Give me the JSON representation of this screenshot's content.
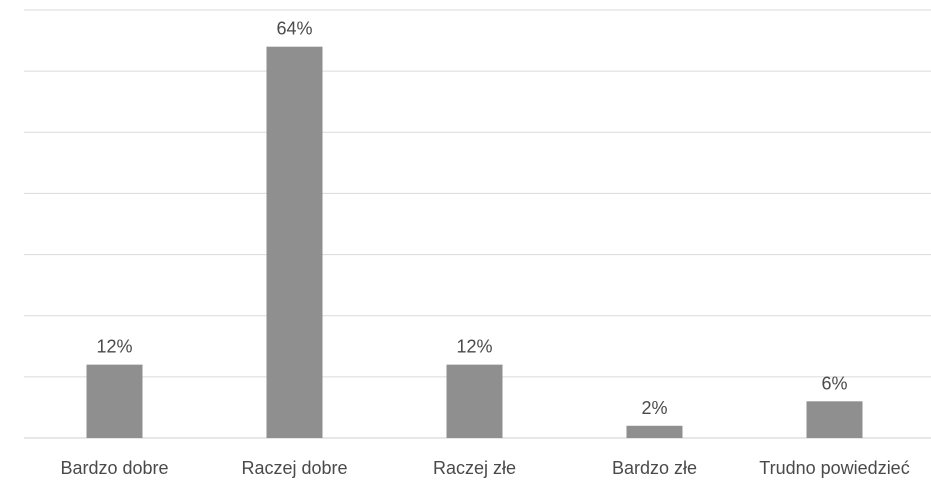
{
  "chart_data": {
    "type": "bar",
    "categories": [
      "Bardzo dobre",
      "Raczej dobre",
      "Raczej złe",
      "Bardzo złe",
      "Trudno powiedzieć"
    ],
    "values": [
      12,
      64,
      12,
      2,
      6
    ],
    "data_labels": [
      "12%",
      "64%",
      "12%",
      "2%",
      "6%"
    ],
    "unit": "%",
    "ylim": [
      0,
      70
    ],
    "grid": true,
    "legend": "none",
    "bar_color": "#8f8f8f",
    "label_color": "#4a4a4a"
  }
}
